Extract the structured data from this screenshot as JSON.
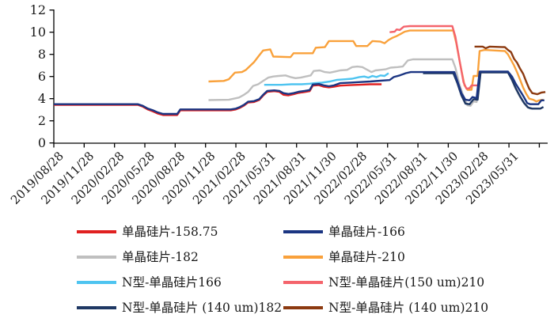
{
  "figure": {
    "background": "#ffffff",
    "text_color": "#1a1a1a",
    "axis_color": "#000000"
  },
  "chart_data": {
    "type": "line",
    "title": "",
    "xlabel": "",
    "ylabel": "",
    "ylim": [
      0,
      12
    ],
    "yticks": [
      0,
      2,
      4,
      6,
      8,
      10,
      12
    ],
    "ytick_labels": [
      "0",
      "2",
      "4",
      "6",
      "8",
      "10",
      "12"
    ],
    "grid": false,
    "legend_position": "bottom",
    "x_unit": "months since first tick (3 months per tick)",
    "x_tick_months": [
      0,
      3,
      6,
      9,
      12,
      15,
      18,
      21,
      24,
      27,
      30,
      33,
      36,
      39,
      42,
      45
    ],
    "x_tick_labels": [
      "2019/08/28",
      "2019/11/28",
      "2020/02/28",
      "2020/05/28",
      "2020/08/28",
      "2020/11/28",
      "2021/02/28",
      "2021/05/31",
      "2021/08/31",
      "2021/11/30",
      "2022/02/28",
      "2022/05/31",
      "2022/08/31",
      "2022/11/30",
      "2023/02/28",
      "2023/05/31"
    ],
    "draw_order": [
      2,
      4,
      0,
      3,
      5,
      6,
      1,
      7
    ],
    "series": [
      {
        "name": "单晶硅片-158.75",
        "color": "#E02020",
        "points": [
          [
            0,
            3.44
          ],
          [
            8.3,
            3.44
          ],
          [
            8.8,
            3.28
          ],
          [
            9.3,
            3.02
          ],
          [
            9.8,
            2.85
          ],
          [
            10.3,
            2.65
          ],
          [
            10.8,
            2.52
          ],
          [
            12.2,
            2.52
          ],
          [
            12.5,
            2.95
          ],
          [
            17.5,
            2.95
          ],
          [
            18.0,
            3.03
          ],
          [
            18.4,
            3.18
          ],
          [
            18.8,
            3.38
          ],
          [
            19.2,
            3.65
          ],
          [
            19.8,
            3.7
          ],
          [
            20.3,
            3.88
          ],
          [
            20.7,
            4.28
          ],
          [
            21.1,
            4.62
          ],
          [
            21.8,
            4.68
          ],
          [
            22.3,
            4.62
          ],
          [
            22.7,
            4.35
          ],
          [
            23.2,
            4.3
          ],
          [
            23.7,
            4.4
          ],
          [
            24.2,
            4.52
          ],
          [
            24.8,
            4.6
          ],
          [
            25.3,
            4.68
          ],
          [
            25.6,
            5.18
          ],
          [
            26.2,
            5.22
          ],
          [
            26.7,
            5.08
          ],
          [
            27.2,
            5.02
          ],
          [
            27.7,
            5.08
          ],
          [
            28.3,
            5.18
          ],
          [
            29.3,
            5.22
          ],
          [
            30.3,
            5.26
          ],
          [
            31.3,
            5.3
          ],
          [
            32.4,
            5.3
          ]
        ]
      },
      {
        "name": "单晶硅片-166",
        "color": "#1B3582",
        "points": [
          [
            0,
            3.5
          ],
          [
            8.3,
            3.5
          ],
          [
            8.8,
            3.35
          ],
          [
            9.3,
            3.1
          ],
          [
            9.8,
            2.95
          ],
          [
            10.3,
            2.75
          ],
          [
            10.8,
            2.62
          ],
          [
            12.2,
            2.62
          ],
          [
            12.5,
            3.03
          ],
          [
            17.5,
            3.03
          ],
          [
            18.0,
            3.1
          ],
          [
            18.4,
            3.25
          ],
          [
            18.8,
            3.45
          ],
          [
            19.2,
            3.72
          ],
          [
            19.8,
            3.78
          ],
          [
            20.3,
            3.95
          ],
          [
            20.7,
            4.35
          ],
          [
            21.1,
            4.7
          ],
          [
            21.8,
            4.75
          ],
          [
            22.3,
            4.7
          ],
          [
            22.7,
            4.5
          ],
          [
            23.2,
            4.42
          ],
          [
            23.7,
            4.5
          ],
          [
            24.2,
            4.62
          ],
          [
            24.8,
            4.7
          ],
          [
            25.3,
            4.78
          ],
          [
            25.6,
            5.28
          ],
          [
            26.2,
            5.32
          ],
          [
            26.7,
            5.2
          ],
          [
            27.2,
            5.12
          ],
          [
            27.7,
            5.2
          ],
          [
            28.3,
            5.4
          ],
          [
            29.3,
            5.45
          ],
          [
            30.3,
            5.5
          ],
          [
            31.3,
            5.55
          ],
          [
            32.3,
            5.62
          ],
          [
            33.2,
            5.68
          ],
          [
            33.6,
            5.95
          ],
          [
            34.2,
            6.1
          ],
          [
            34.8,
            6.3
          ],
          [
            35.3,
            6.4
          ],
          [
            39.6,
            6.4
          ],
          [
            39.9,
            5.6
          ],
          [
            40.3,
            4.5
          ],
          [
            40.7,
            3.9
          ],
          [
            41.1,
            3.85
          ],
          [
            41.4,
            4.15
          ],
          [
            41.8,
            4.05
          ],
          [
            42.1,
            6.45
          ],
          [
            44.9,
            6.45
          ],
          [
            45.3,
            6.0
          ],
          [
            45.7,
            5.3
          ],
          [
            46.1,
            4.7
          ],
          [
            46.5,
            4.1
          ],
          [
            46.8,
            3.6
          ],
          [
            47.1,
            3.5
          ],
          [
            47.9,
            3.5
          ],
          [
            48.2,
            3.85
          ],
          [
            48.5,
            3.85
          ]
        ]
      },
      {
        "name": "单晶硅片-182",
        "color": "#BFBFBF",
        "points": [
          [
            15.3,
            3.87
          ],
          [
            17.3,
            3.9
          ],
          [
            17.8,
            4.0
          ],
          [
            18.3,
            4.1
          ],
          [
            18.8,
            4.35
          ],
          [
            19.2,
            4.6
          ],
          [
            19.7,
            5.15
          ],
          [
            20.2,
            5.3
          ],
          [
            20.7,
            5.6
          ],
          [
            21.2,
            5.9
          ],
          [
            21.7,
            6.0
          ],
          [
            22.2,
            6.05
          ],
          [
            22.9,
            6.1
          ],
          [
            23.4,
            5.95
          ],
          [
            23.9,
            5.85
          ],
          [
            24.4,
            5.9
          ],
          [
            24.9,
            6.0
          ],
          [
            25.4,
            6.1
          ],
          [
            25.7,
            6.5
          ],
          [
            26.3,
            6.55
          ],
          [
            26.8,
            6.4
          ],
          [
            27.3,
            6.35
          ],
          [
            27.8,
            6.45
          ],
          [
            28.3,
            6.55
          ],
          [
            29.0,
            6.6
          ],
          [
            29.5,
            6.85
          ],
          [
            30.0,
            6.9
          ],
          [
            30.5,
            6.85
          ],
          [
            31.0,
            6.6
          ],
          [
            31.4,
            6.4
          ],
          [
            31.8,
            6.55
          ],
          [
            32.3,
            6.6
          ],
          [
            32.8,
            6.65
          ],
          [
            33.3,
            6.8
          ],
          [
            34.0,
            6.85
          ],
          [
            34.5,
            6.9
          ],
          [
            35.0,
            7.45
          ],
          [
            35.5,
            7.55
          ],
          [
            39.4,
            7.55
          ],
          [
            39.7,
            6.8
          ],
          [
            40.1,
            5.3
          ],
          [
            40.5,
            4.2
          ],
          [
            40.9,
            3.4
          ],
          [
            41.2,
            3.35
          ],
          [
            41.5,
            3.75
          ],
          [
            41.8,
            3.7
          ],
          [
            42.1,
            6.35
          ],
          [
            44.9,
            6.35
          ],
          [
            45.2,
            5.9
          ],
          [
            45.6,
            5.0
          ],
          [
            46.0,
            4.3
          ],
          [
            46.4,
            3.7
          ],
          [
            46.8,
            3.25
          ],
          [
            47.1,
            3.1
          ],
          [
            48.0,
            3.1
          ]
        ]
      },
      {
        "name": "单晶硅片-210",
        "color": "#F9A13B",
        "points": [
          [
            15.3,
            5.55
          ],
          [
            16.8,
            5.6
          ],
          [
            17.3,
            5.75
          ],
          [
            17.9,
            6.35
          ],
          [
            18.6,
            6.4
          ],
          [
            19.0,
            6.6
          ],
          [
            19.4,
            6.95
          ],
          [
            19.8,
            7.3
          ],
          [
            20.3,
            7.9
          ],
          [
            20.7,
            8.35
          ],
          [
            21.4,
            8.45
          ],
          [
            21.7,
            7.8
          ],
          [
            23.4,
            7.75
          ],
          [
            23.7,
            8.1
          ],
          [
            25.6,
            8.1
          ],
          [
            25.9,
            8.6
          ],
          [
            26.8,
            8.65
          ],
          [
            27.2,
            9.2
          ],
          [
            29.6,
            9.2
          ],
          [
            29.9,
            8.75
          ],
          [
            31.0,
            8.75
          ],
          [
            31.5,
            9.2
          ],
          [
            32.3,
            9.15
          ],
          [
            32.7,
            9.0
          ],
          [
            33.1,
            9.3
          ],
          [
            33.5,
            9.5
          ],
          [
            33.9,
            9.65
          ],
          [
            34.3,
            9.85
          ],
          [
            34.7,
            10.05
          ],
          [
            35.2,
            10.15
          ],
          [
            39.5,
            10.15
          ],
          [
            39.8,
            9.0
          ],
          [
            40.2,
            7.0
          ],
          [
            40.6,
            5.2
          ],
          [
            40.9,
            4.8
          ],
          [
            41.3,
            4.8
          ],
          [
            41.5,
            6.05
          ],
          [
            41.9,
            6.05
          ],
          [
            42.1,
            8.3
          ],
          [
            42.6,
            8.4
          ],
          [
            44.6,
            8.3
          ],
          [
            44.9,
            8.0
          ],
          [
            45.2,
            7.5
          ],
          [
            45.5,
            7.0
          ],
          [
            45.8,
            6.4
          ],
          [
            46.1,
            5.7
          ],
          [
            46.4,
            5.0
          ],
          [
            46.7,
            4.45
          ],
          [
            47.0,
            4.0
          ],
          [
            47.4,
            3.9
          ],
          [
            47.7,
            3.75
          ],
          [
            48.0,
            3.85
          ],
          [
            48.4,
            3.9
          ]
        ]
      },
      {
        "name": "N型-单晶硅片166",
        "color": "#4EC4F0",
        "points": [
          [
            20.8,
            5.25
          ],
          [
            22.5,
            5.25
          ],
          [
            23.5,
            5.3
          ],
          [
            24.5,
            5.3
          ],
          [
            25.3,
            5.35
          ],
          [
            25.8,
            5.4
          ],
          [
            26.5,
            5.45
          ],
          [
            27.3,
            5.55
          ],
          [
            28.0,
            5.7
          ],
          [
            28.8,
            5.75
          ],
          [
            29.5,
            5.8
          ],
          [
            30.2,
            5.95
          ],
          [
            30.7,
            6.0
          ],
          [
            31.1,
            5.9
          ],
          [
            31.5,
            6.05
          ],
          [
            31.9,
            5.95
          ],
          [
            32.3,
            6.1
          ],
          [
            32.7,
            6.05
          ],
          [
            33.1,
            6.3
          ]
        ]
      },
      {
        "name": "N型-单晶硅片(150 um)210",
        "color": "#F4646C",
        "points": [
          [
            33.2,
            10.0
          ],
          [
            33.7,
            10.05
          ],
          [
            33.9,
            10.25
          ],
          [
            34.2,
            10.2
          ],
          [
            34.6,
            10.5
          ],
          [
            35.2,
            10.55
          ],
          [
            39.4,
            10.55
          ],
          [
            39.7,
            9.6
          ],
          [
            40.1,
            7.5
          ],
          [
            40.5,
            5.5
          ],
          [
            40.8,
            4.9
          ],
          [
            41.1,
            4.95
          ],
          [
            41.3,
            5.2
          ],
          [
            41.9,
            5.2
          ]
        ]
      },
      {
        "name": "N型-单晶硅片 (140 um)182",
        "color": "#1F3864",
        "points": [
          [
            36.5,
            6.3
          ],
          [
            39.5,
            6.3
          ],
          [
            39.9,
            5.4
          ],
          [
            40.3,
            4.3
          ],
          [
            40.7,
            3.55
          ],
          [
            41.1,
            3.5
          ],
          [
            41.5,
            3.95
          ],
          [
            41.9,
            3.9
          ],
          [
            42.2,
            6.38
          ],
          [
            44.9,
            6.38
          ],
          [
            45.3,
            5.7
          ],
          [
            45.7,
            4.9
          ],
          [
            46.1,
            4.2
          ],
          [
            46.5,
            3.6
          ],
          [
            46.9,
            3.2
          ],
          [
            47.3,
            3.1
          ],
          [
            48.1,
            3.1
          ],
          [
            48.4,
            3.25
          ]
        ]
      },
      {
        "name": "N型-单晶硅片 (140 um)210",
        "color": "#8C3A10",
        "points": [
          [
            41.6,
            8.7
          ],
          [
            42.4,
            8.7
          ],
          [
            42.7,
            8.55
          ],
          [
            43.1,
            8.7
          ],
          [
            44.6,
            8.65
          ],
          [
            44.9,
            8.4
          ],
          [
            45.2,
            8.2
          ],
          [
            45.5,
            7.6
          ],
          [
            45.8,
            7.25
          ],
          [
            46.1,
            6.7
          ],
          [
            46.4,
            6.25
          ],
          [
            46.7,
            5.55
          ],
          [
            47.0,
            4.9
          ],
          [
            47.3,
            4.5
          ],
          [
            47.8,
            4.4
          ],
          [
            48.2,
            4.55
          ],
          [
            48.6,
            4.6
          ]
        ]
      }
    ],
    "legend": {
      "columns": [
        [
          0,
          2,
          4,
          6
        ],
        [
          1,
          3,
          5,
          7
        ]
      ]
    }
  }
}
